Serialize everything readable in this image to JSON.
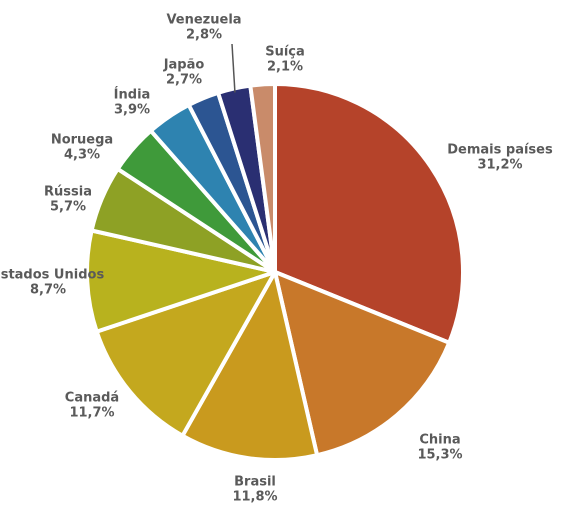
{
  "chart_data": {
    "type": "pie",
    "categories": [
      "Demais países",
      "China",
      "Brasil",
      "Canadá",
      "Estados Unidos",
      "Rússia",
      "Noruega",
      "Índia",
      "Japão",
      "Venezuela",
      "Suíça"
    ],
    "values": [
      31.2,
      15.3,
      11.8,
      11.7,
      8.7,
      5.7,
      4.3,
      3.9,
      2.7,
      2.8,
      2.1
    ],
    "value_labels": [
      "31,2%",
      "15,3%",
      "11,8%",
      "11,7%",
      "8,7%",
      "5,7%",
      "4,3%",
      "3,9%",
      "2,7%",
      "2,8%",
      "2,1%"
    ],
    "colors": [
      "#b5432a",
      "#c8782a",
      "#c99a1e",
      "#c4a81e",
      "#b8b21e",
      "#8ea125",
      "#3f9a3a",
      "#2e83b0",
      "#2c5592",
      "#2a2f72",
      "#c98b6a"
    ]
  }
}
